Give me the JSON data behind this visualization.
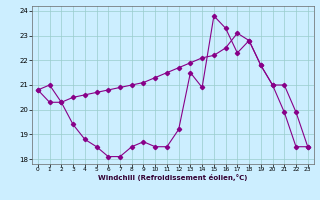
{
  "xlabel": "Windchill (Refroidissement éolien,°C)",
  "bg_color": "#cceeff",
  "line_color": "#880088",
  "xlim": [
    -0.5,
    23.5
  ],
  "ylim": [
    17.8,
    24.2
  ],
  "yticks": [
    18,
    19,
    20,
    21,
    22,
    23,
    24
  ],
  "xticks": [
    0,
    1,
    2,
    3,
    4,
    5,
    6,
    7,
    8,
    9,
    10,
    11,
    12,
    13,
    14,
    15,
    16,
    17,
    18,
    19,
    20,
    21,
    22,
    23
  ],
  "line1_x": [
    0,
    1,
    2,
    3,
    4,
    5,
    6,
    7,
    8,
    9,
    10,
    11,
    12,
    13,
    14,
    15,
    16,
    17,
    18,
    19,
    20,
    21,
    22,
    23
  ],
  "line1_y": [
    20.8,
    21.0,
    20.3,
    19.4,
    18.8,
    18.5,
    18.1,
    18.1,
    18.5,
    18.7,
    18.5,
    18.5,
    19.2,
    21.5,
    20.9,
    23.8,
    23.3,
    22.3,
    22.8,
    21.8,
    21.0,
    19.9,
    18.5,
    18.5
  ],
  "line2_x": [
    0,
    1,
    2,
    3,
    4,
    5,
    6,
    7,
    8,
    9,
    10,
    11,
    12,
    13,
    14,
    15,
    16,
    17,
    18,
    19,
    20,
    21,
    22,
    23
  ],
  "line2_y": [
    20.8,
    20.3,
    20.3,
    20.5,
    20.6,
    20.7,
    20.8,
    20.9,
    21.0,
    21.1,
    21.3,
    21.5,
    21.7,
    21.9,
    22.1,
    22.2,
    22.5,
    23.1,
    22.8,
    21.8,
    21.0,
    21.0,
    19.9,
    18.5
  ]
}
